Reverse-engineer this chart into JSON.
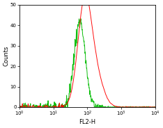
{
  "title": "",
  "xlabel": "FL2-H",
  "ylabel": "Counts",
  "xlim": [
    1,
    10000
  ],
  "ylim": [
    0,
    50
  ],
  "yticks": [
    0,
    10,
    20,
    30,
    40,
    50
  ],
  "background_color": "#ffffff",
  "green_color": "#00bb00",
  "red_color": "#ff0000",
  "green_peak_log": 1.78,
  "green_peak_height": 42,
  "red_peak_log": 1.92,
  "red_peak_height": 50,
  "green_sigma": 0.16,
  "red_sigma": 0.2,
  "red_shoulder_height": 14,
  "red_shoulder_log": 2.25,
  "red_shoulder_sigma": 0.22,
  "seed": 7
}
